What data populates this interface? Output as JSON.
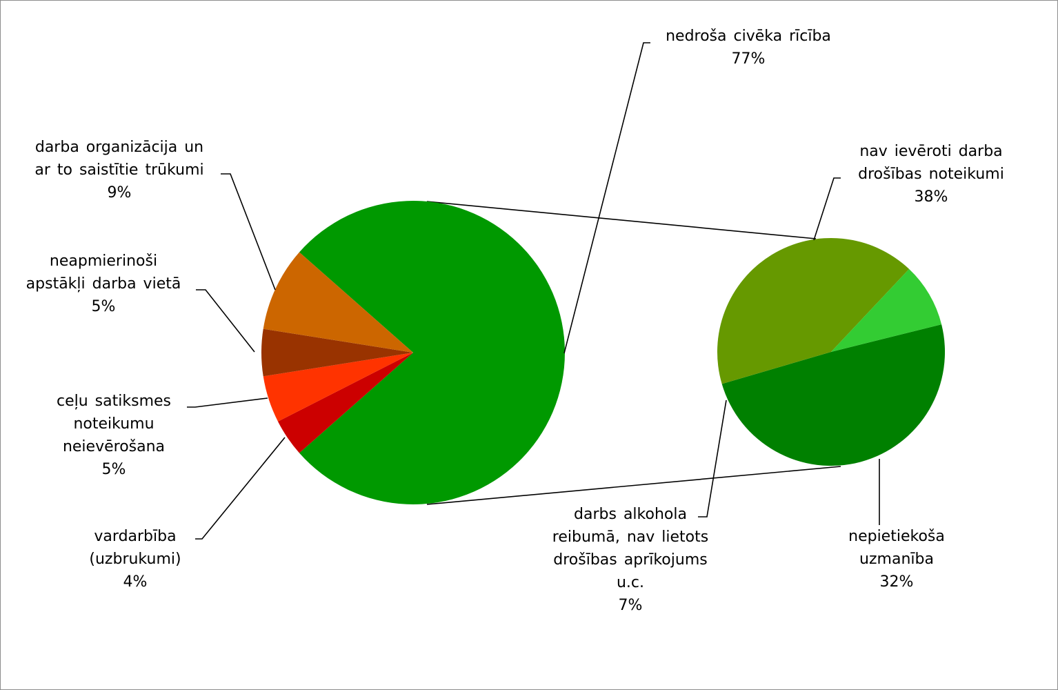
{
  "chart_data": {
    "type": "pie",
    "subtype": "pie-of-pie",
    "title": "",
    "main_pie": {
      "slices": [
        {
          "label": "nedroša civēka rīcība",
          "value_label": "77%",
          "value": 77,
          "color": "#009900",
          "expanded": true
        },
        {
          "label": "vardarbība (uzbrukumi)",
          "value_label": "4%",
          "value": 4,
          "color": "#cc0000"
        },
        {
          "label": "ceļu satiksmes noteikumu neievērošana",
          "value_label": "5%",
          "value": 5,
          "color": "#ff3300"
        },
        {
          "label": "neapmierinoši apstākļi darba vietā",
          "value_label": "5%",
          "value": 5,
          "color": "#993300"
        },
        {
          "label": "darba organizācija un ar to saistītie trūkumi",
          "value_label": "9%",
          "value": 9,
          "color": "#cc6600"
        }
      ]
    },
    "secondary_pie": {
      "parent": "nedroša civēka rīcība",
      "slices": [
        {
          "label": "nav ievēroti darba drošības noteikumi",
          "value_label": "38%",
          "value": 38,
          "color": "#008000"
        },
        {
          "label": "nepietiekoša uzmanība",
          "value_label": "32%",
          "value": 32,
          "color": "#669900"
        },
        {
          "label": "darbs alkohola reibumā, nav lietots drošības aprīkojums u.c.",
          "value_label": "7%",
          "value": 7,
          "color": "#33cc33"
        }
      ]
    },
    "labels": {
      "unsafe": [
        "nedroša civēka rīcība",
        "77%"
      ],
      "org": [
        "darba organizācija un",
        "ar to saistītie trūkumi",
        "9%"
      ],
      "cond": [
        "neapmierinoši",
        "apstākļi darba vietā",
        "5%"
      ],
      "traffic": [
        "ceļu satiksmes",
        "noteikumu",
        "neievērošana",
        "5%"
      ],
      "violence": [
        "vardarbība",
        "(uzbrukumi)",
        "4%"
      ],
      "rules": [
        "nav ievēroti darba",
        "drošības noteikumi",
        "38%"
      ],
      "alcohol": [
        "darbs alkohola",
        "reibumā, nav lietots",
        "drošības aprīkojums",
        "u.c.",
        "7%"
      ],
      "attention": [
        "nepietiekoša",
        "uzmanība",
        "32%"
      ]
    },
    "legend": "none"
  }
}
